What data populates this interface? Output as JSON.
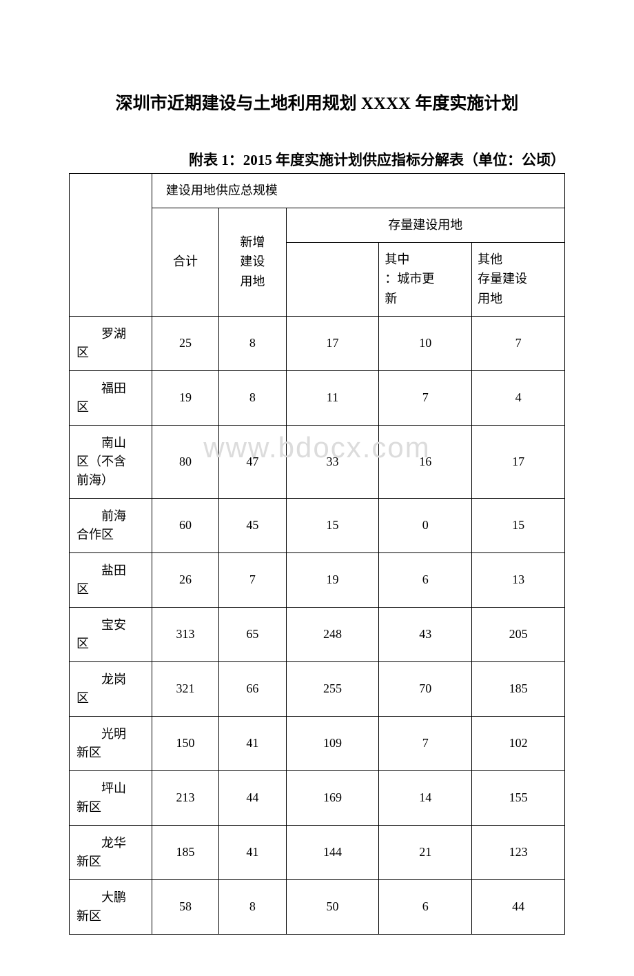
{
  "title": "深圳市近期建设与土地利用规划 XXXX 年度实施计划",
  "subtitle": "附表 1：2015 年度实施计划供应指标分解表（单位：公顷）",
  "watermark": "www.bdocx.com",
  "table": {
    "headers": {
      "topHeader": "建设用地供应总规模",
      "heji": "合计",
      "xinzeng": "新增\n建设\n用地",
      "cunliang": "存量建设用地",
      "qizhong": "其中\n：城市更\n新",
      "qita": "其他\n存量建设\n用地"
    },
    "rows": [
      {
        "label": "罗湖\n区",
        "heji": "25",
        "xinzeng": "8",
        "cunliang": "17",
        "qizhong": "10",
        "qita": "7"
      },
      {
        "label": "福田\n区",
        "heji": "19",
        "xinzeng": "8",
        "cunliang": "11",
        "qizhong": "7",
        "qita": "4"
      },
      {
        "label": "南山\n区（不含\n前海）",
        "heji": "80",
        "xinzeng": "47",
        "cunliang": "33",
        "qizhong": "16",
        "qita": "17"
      },
      {
        "label": "前海\n合作区",
        "heji": "60",
        "xinzeng": "45",
        "cunliang": "15",
        "qizhong": "0",
        "qita": "15"
      },
      {
        "label": "盐田\n区",
        "heji": "26",
        "xinzeng": "7",
        "cunliang": "19",
        "qizhong": "6",
        "qita": "13"
      },
      {
        "label": "宝安\n区",
        "heji": "313",
        "xinzeng": "65",
        "cunliang": "248",
        "qizhong": "43",
        "qita": "205"
      },
      {
        "label": "龙岗\n区",
        "heji": "321",
        "xinzeng": "66",
        "cunliang": "255",
        "qizhong": "70",
        "qita": "185"
      },
      {
        "label": "光明\n新区",
        "heji": "150",
        "xinzeng": "41",
        "cunliang": "109",
        "qizhong": "7",
        "qita": "102"
      },
      {
        "label": "坪山\n新区",
        "heji": "213",
        "xinzeng": "44",
        "cunliang": "169",
        "qizhong": "14",
        "qita": "155"
      },
      {
        "label": "龙华\n新区",
        "heji": "185",
        "xinzeng": "41",
        "cunliang": "144",
        "qizhong": "21",
        "qita": "123"
      },
      {
        "label": "大鹏\n新区",
        "heji": "58",
        "xinzeng": "8",
        "cunliang": "50",
        "qizhong": "6",
        "qita": "44"
      }
    ],
    "colWidths": [
      "16%",
      "13%",
      "13%",
      "18%",
      "18%",
      "18%"
    ]
  },
  "colors": {
    "text": "#000000",
    "border": "#000000",
    "background": "#ffffff",
    "watermark": "#dcdcdc"
  }
}
